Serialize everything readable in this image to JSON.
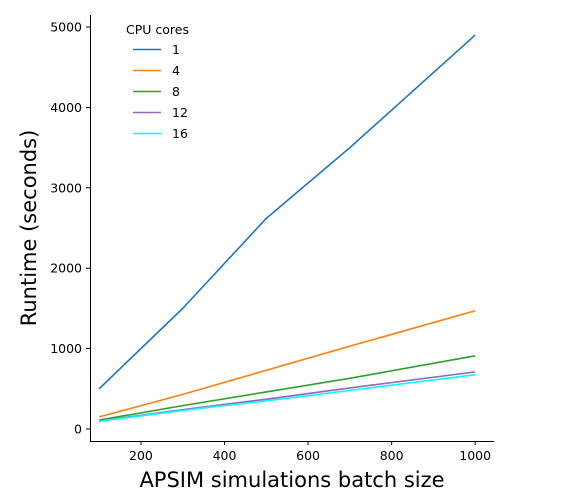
{
  "chart_data": {
    "type": "line",
    "title": "",
    "xlabel": "APSIM simulations batch size",
    "ylabel": "Runtime (seconds)",
    "xlim": [
      78,
      1045
    ],
    "ylim": [
      -150,
      5150
    ],
    "x_ticks": [
      200,
      400,
      600,
      800,
      1000
    ],
    "y_ticks": [
      0,
      1000,
      2000,
      3000,
      4000,
      5000
    ],
    "grid": false,
    "legend": {
      "title": "CPU cores",
      "position": "top-left"
    },
    "series": [
      {
        "name": "1",
        "color": "#1f77b4",
        "x": [
          100,
          300,
          500,
          700,
          1000
        ],
        "y": [
          500,
          1500,
          2620,
          3500,
          4900
        ]
      },
      {
        "name": "4",
        "color": "#ff7f0e",
        "x": [
          100,
          300,
          500,
          700,
          1000
        ],
        "y": [
          150,
          430,
          730,
          1030,
          1470
        ]
      },
      {
        "name": "8",
        "color": "#2ca02c",
        "x": [
          100,
          300,
          500,
          700,
          1000
        ],
        "y": [
          110,
          290,
          460,
          630,
          910
        ]
      },
      {
        "name": "12",
        "color": "#9467bd",
        "x": [
          100,
          300,
          500,
          700,
          1000
        ],
        "y": [
          100,
          240,
          370,
          510,
          710
        ]
      },
      {
        "name": "16",
        "color": "#00ffff",
        "x": [
          100,
          300,
          500,
          700,
          1000
        ],
        "y": [
          95,
          230,
          350,
          480,
          675
        ]
      }
    ]
  }
}
